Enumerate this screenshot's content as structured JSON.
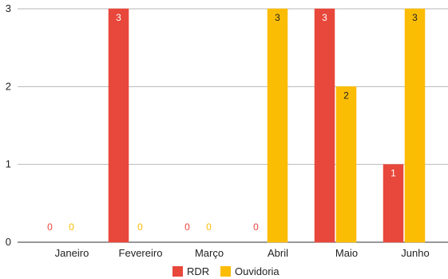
{
  "chart_data": {
    "type": "bar",
    "title": "",
    "xlabel": "",
    "ylabel": "",
    "categories": [
      "Janeiro",
      "Fevereiro",
      "Março",
      "Abril",
      "Maio",
      "Junho"
    ],
    "series": [
      {
        "name": "RDR",
        "color": "#e8473b",
        "label_color": "#ffffff",
        "values": [
          0,
          3,
          0,
          0,
          3,
          1
        ],
        "labels": [
          "0",
          "3",
          "0",
          "0",
          "3",
          "1"
        ]
      },
      {
        "name": "Ouvidoria",
        "color": "#fbbc04",
        "label_color": "#222222",
        "values": [
          0,
          0,
          0,
          3,
          2,
          3
        ],
        "labels": [
          "0",
          "0",
          "0",
          "3",
          "2",
          "3"
        ]
      }
    ],
    "ylim": [
      0,
      3
    ],
    "yticks": [
      "0",
      "1",
      "2",
      "3"
    ],
    "grid": true,
    "legend_position": "bottom"
  }
}
